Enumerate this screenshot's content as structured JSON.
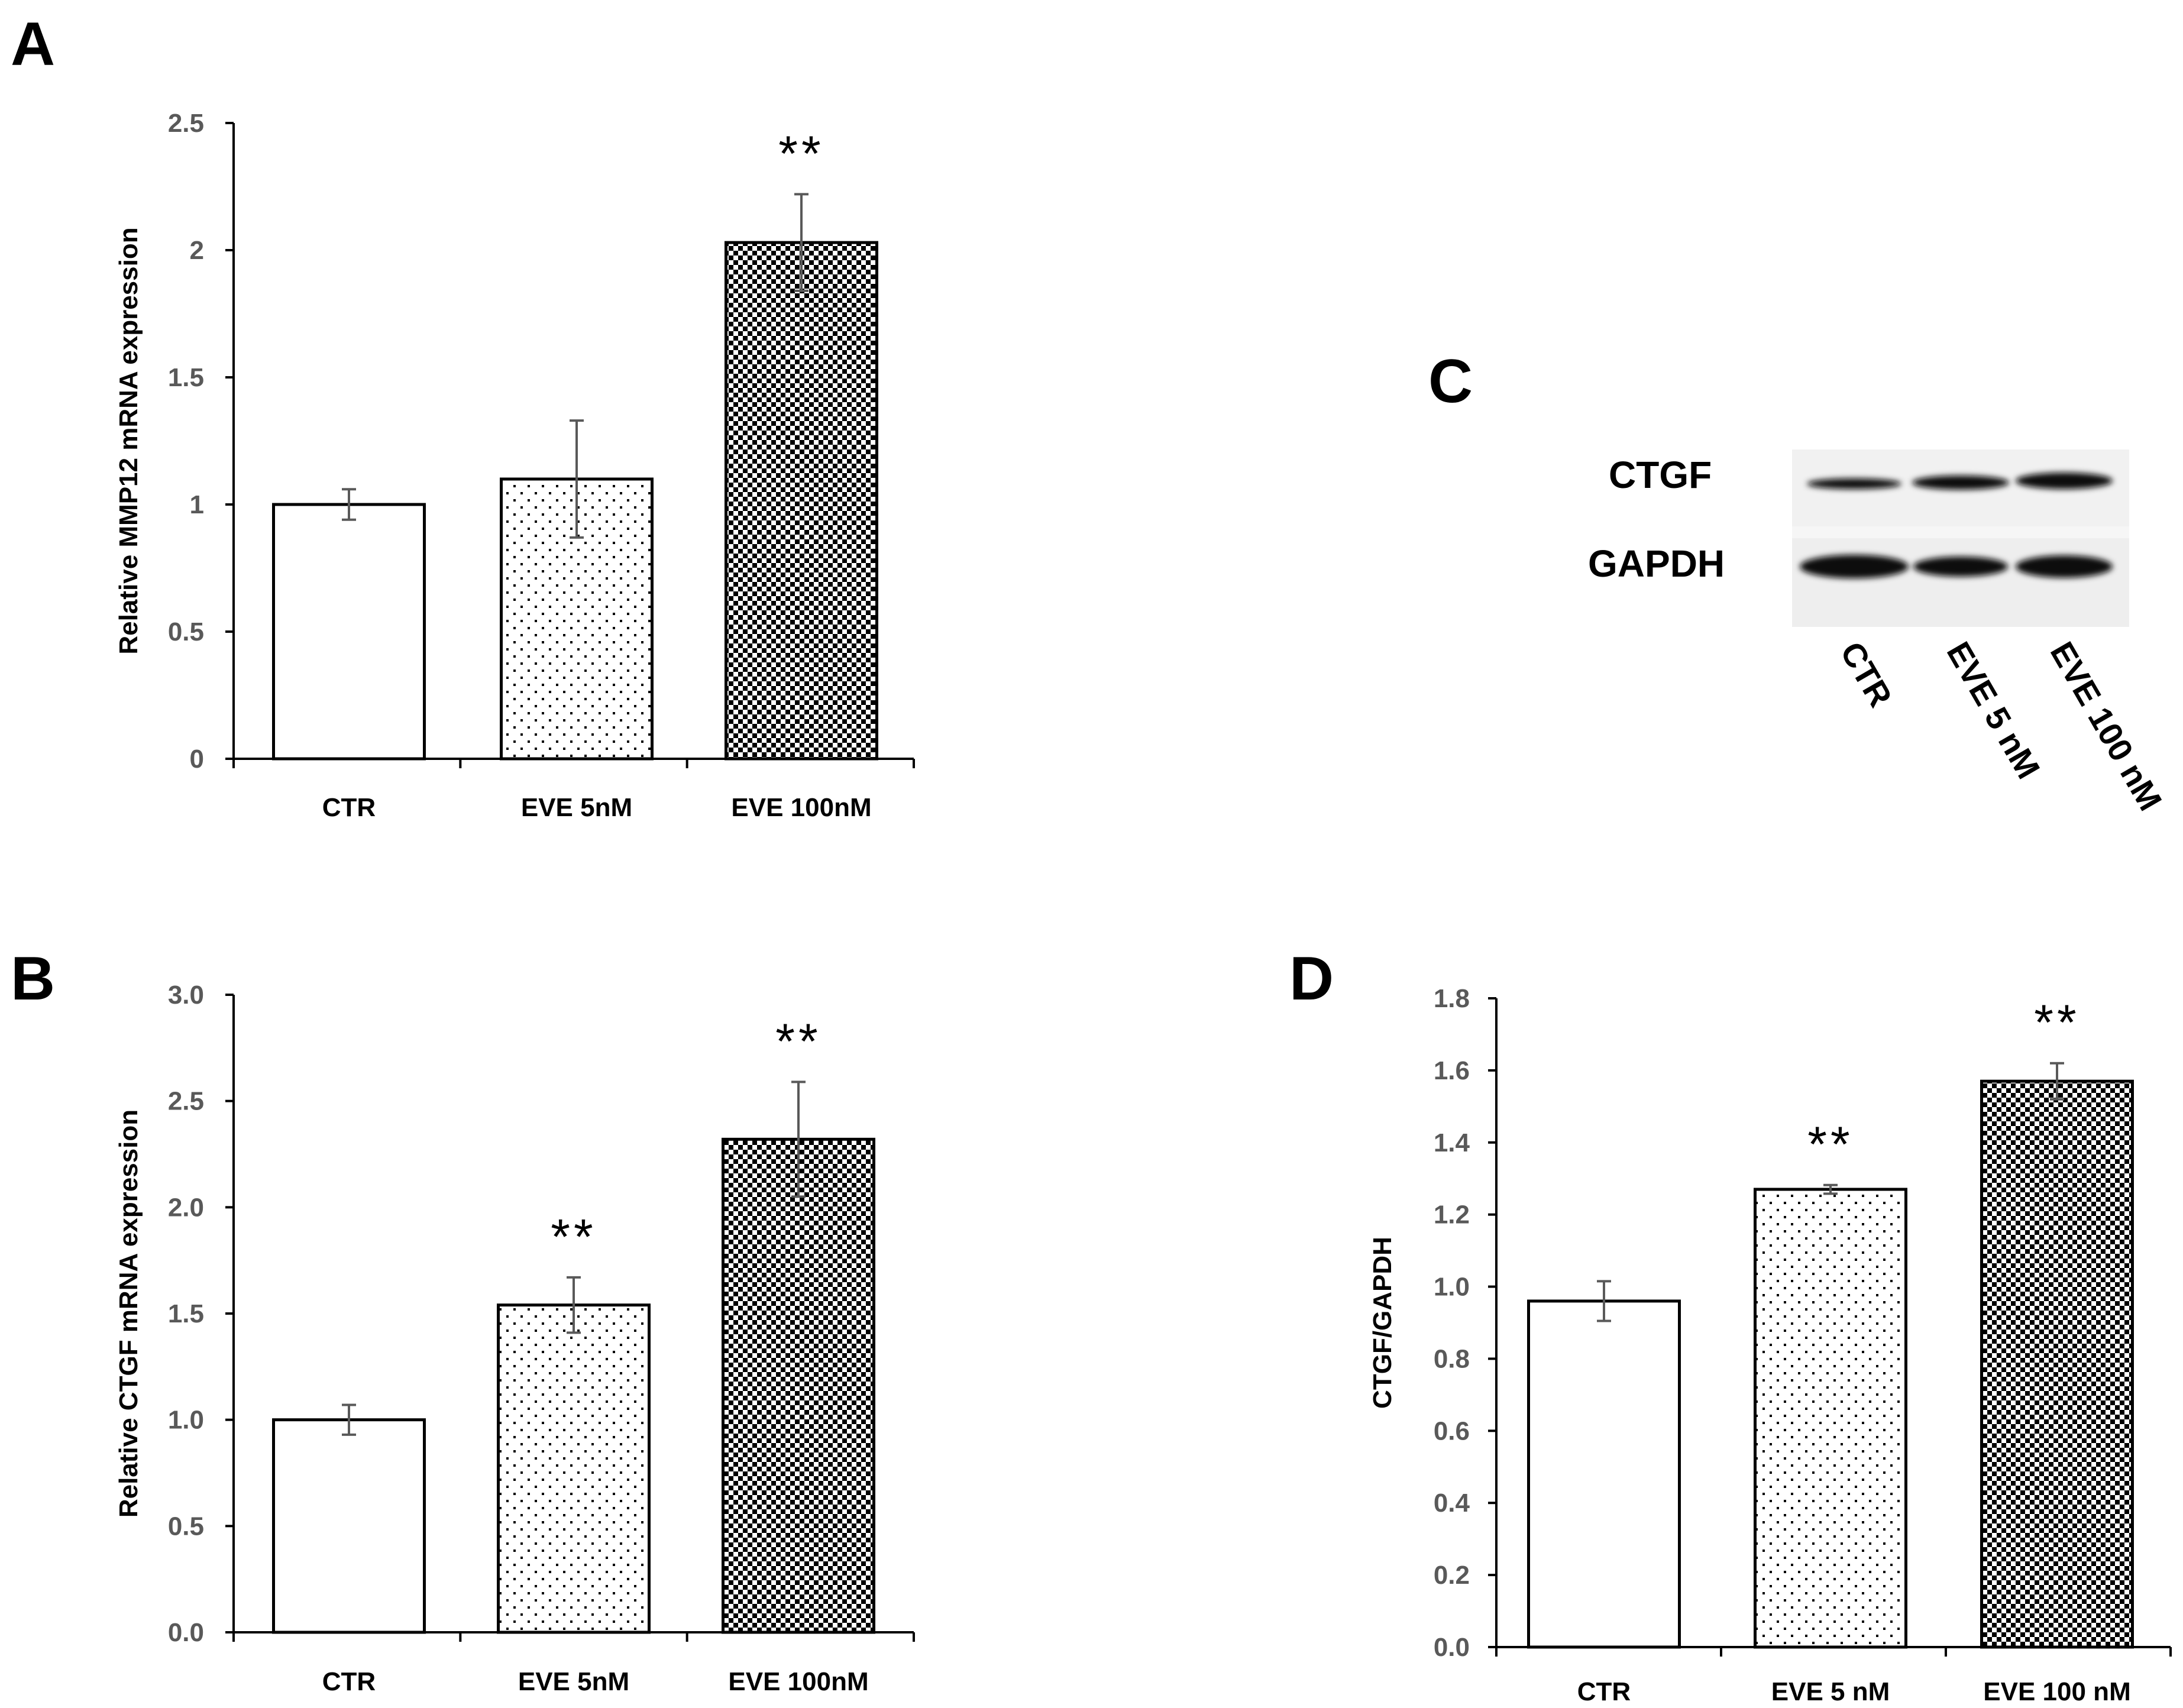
{
  "chart_data": [
    {
      "panel": "A",
      "type": "bar",
      "title": "",
      "xlabel": "",
      "ylabel": "Relative MMP12 mRNA expression",
      "categories": [
        "CTR",
        "EVE 5nM",
        "EVE 100nM"
      ],
      "values": [
        1.0,
        1.1,
        2.03
      ],
      "errors": [
        0.06,
        0.23,
        0.19
      ],
      "significance": [
        "",
        "",
        "**"
      ],
      "patterns": [
        "white",
        "dots",
        "checker"
      ],
      "ylim": [
        0,
        2.5
      ],
      "yticks": [
        "0",
        "0.5",
        "1",
        "1.5",
        "2",
        "2.5"
      ]
    },
    {
      "panel": "B",
      "type": "bar",
      "title": "",
      "xlabel": "",
      "ylabel": "Relative CTGF mRNA expression",
      "categories": [
        "CTR",
        "EVE 5nM",
        "EVE 100nM"
      ],
      "values": [
        1.0,
        1.54,
        2.32
      ],
      "errors": [
        0.07,
        0.13,
        0.27
      ],
      "significance": [
        "",
        "**",
        "**"
      ],
      "patterns": [
        "white",
        "dots",
        "checker"
      ],
      "ylim": [
        0,
        3.0
      ],
      "yticks": [
        "0.0",
        "0.5",
        "1.0",
        "1.5",
        "2.0",
        "2.5",
        "3.0"
      ]
    },
    {
      "panel": "D",
      "type": "bar",
      "title": "",
      "xlabel": "",
      "ylabel": "CTGF/GAPDH",
      "categories": [
        "CTR",
        "EVE 5 nM",
        "EVE 100 nM"
      ],
      "values": [
        0.96,
        1.27,
        1.57
      ],
      "errors": [
        0.055,
        0.012,
        0.05
      ],
      "significance": [
        "",
        "**",
        "**"
      ],
      "patterns": [
        "white",
        "dots",
        "checker"
      ],
      "ylim": [
        0,
        1.8
      ],
      "yticks": [
        "0.0",
        "0.2",
        "0.4",
        "0.6",
        "0.8",
        "1.0",
        "1.2",
        "1.4",
        "1.6",
        "1.8"
      ]
    }
  ],
  "blot": {
    "panel": "C",
    "rows": [
      "CTGF",
      "GAPDH"
    ],
    "lanes": [
      "CTR",
      "EVE 5 nM",
      "EVE 100 nM"
    ]
  },
  "colors": {
    "bar_border": "#000000",
    "error_bar": "#595959",
    "tick_text": "#595959"
  }
}
